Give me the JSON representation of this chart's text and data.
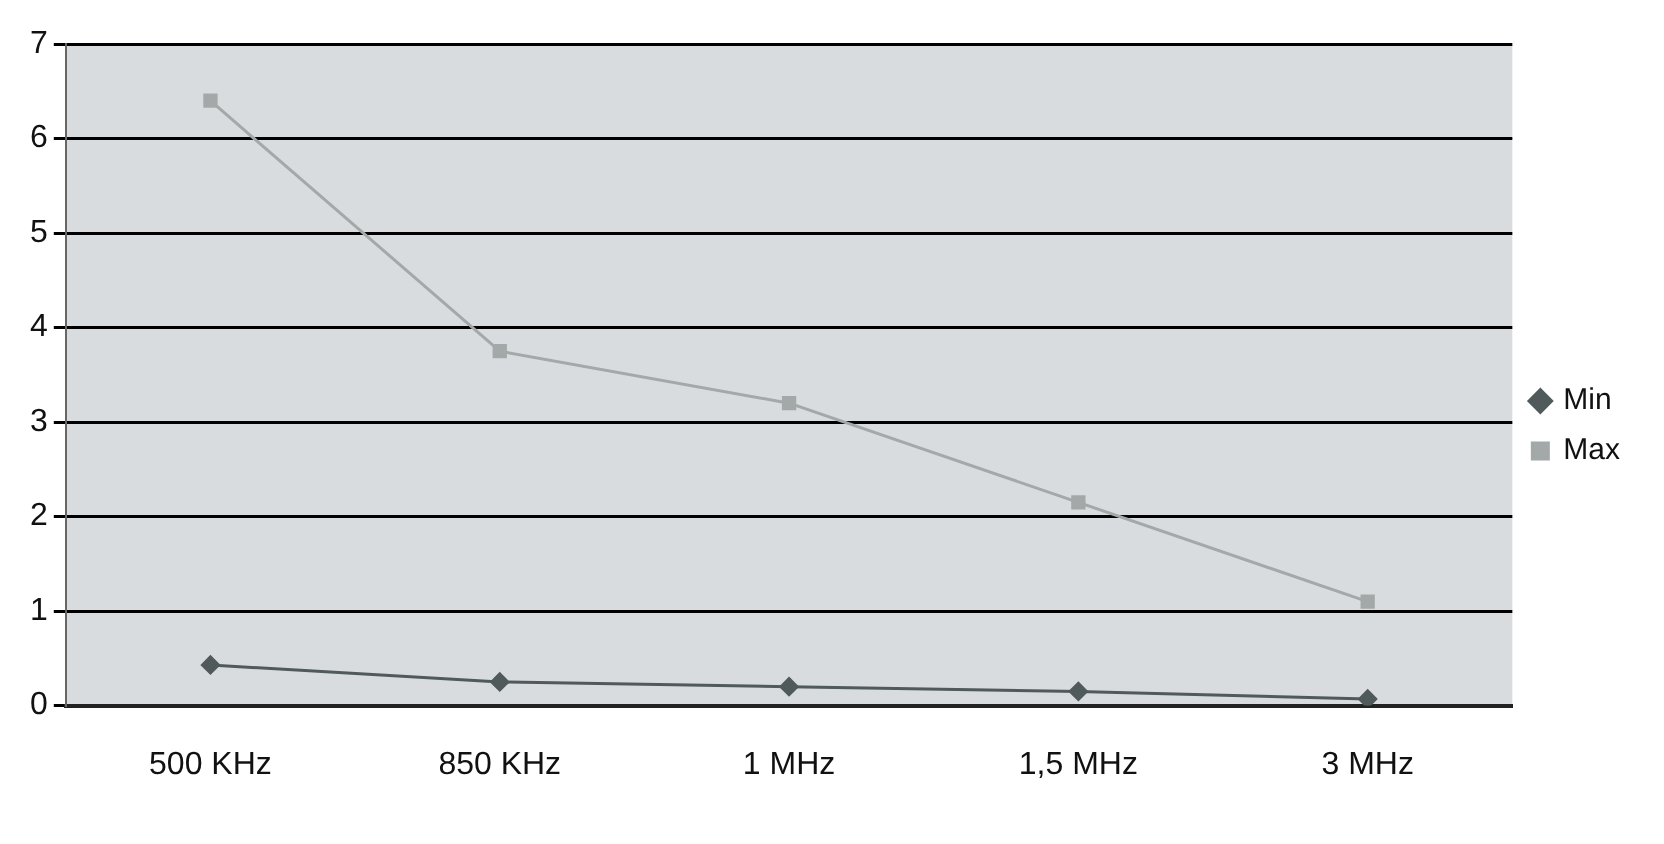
{
  "chart_data": {
    "type": "line",
    "categories": [
      "500 KHz",
      "850 KHz",
      "1 MHz",
      "1,5 MHz",
      "3 MHz"
    ],
    "series": [
      {
        "name": "Min",
        "color": "#505a5a",
        "marker": "diamond",
        "values": [
          0.43,
          0.25,
          0.2,
          0.15,
          0.07
        ]
      },
      {
        "name": "Max",
        "color": "#a3a8a8",
        "marker": "square",
        "values": [
          6.4,
          3.75,
          3.2,
          2.15,
          1.1
        ]
      }
    ],
    "ylim": [
      0,
      7
    ],
    "yticks": [
      0,
      1,
      2,
      3,
      4,
      5,
      6,
      7
    ],
    "grid": "y",
    "legend": "right",
    "line_style": "solid"
  }
}
